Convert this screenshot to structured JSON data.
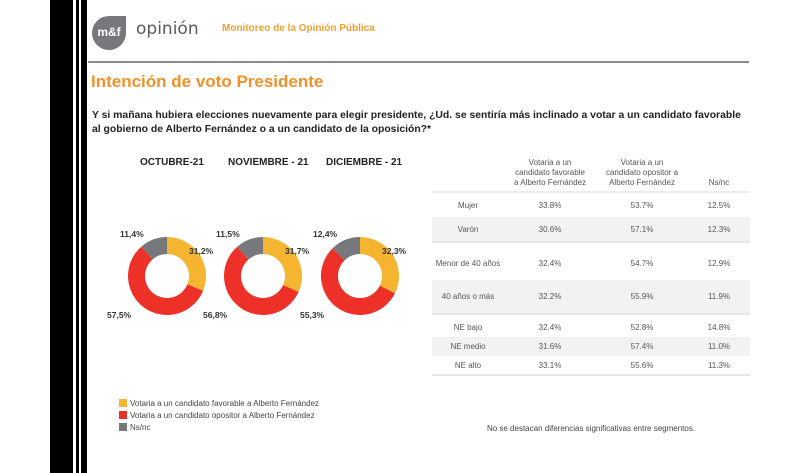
{
  "header": {
    "logo_text": "m&f",
    "brand": "opinión",
    "subtitle": "Monitoreo de la Opinión Pública"
  },
  "title": "Intención de voto Presidente",
  "question": "Y si mañana hubiera elecciones nuevamente para elegir presidente, ¿Ud. se sentiría más inclinado a votar a un candidato favorable al gobierno de Alberto Fernández o a un candidato de la oposición?*",
  "colors": {
    "favorable": "#f6b531",
    "opositor": "#ee3128",
    "nsnc": "#77787b"
  },
  "chart_data": [
    {
      "type": "pie",
      "title": "OCTUBRE-21",
      "labels": [
        "Votaria a un candidato favorable a Alberto Fernández",
        "Votaria a un candidato opositor a Alberto Fernández",
        "Ns/nc"
      ],
      "values": [
        31.2,
        57.5,
        11.4
      ],
      "value_labels": [
        "31,2%",
        "57,5%",
        "11,4%"
      ]
    },
    {
      "type": "pie",
      "title": "NOVIEMBRE - 21",
      "labels": [
        "Votaria a un candidato favorable a Alberto Fernández",
        "Votaria a un candidato opositor a Alberto Fernández",
        "Ns/nc"
      ],
      "values": [
        31.7,
        56.8,
        11.5
      ],
      "value_labels": [
        "31,7%",
        "56,8%",
        "11,5%"
      ]
    },
    {
      "type": "pie",
      "title": "DICIEMBRE - 21",
      "labels": [
        "Votaria a un candidato favorable a Alberto Fernández",
        "Votaria a un candidato opositor a Alberto Fernández",
        "Ns/nc"
      ],
      "values": [
        32.3,
        55.3,
        12.4
      ],
      "value_labels": [
        "32,3%",
        "55,3%",
        "12,4%"
      ]
    },
    {
      "type": "table",
      "columns": [
        "Votaria a un candidato favorable a Alberto Fernández",
        "Votaria a un candidato opositor a Alberto Fernández",
        "Ns/nc"
      ],
      "rows": [
        {
          "segment": "Mujer",
          "values": [
            "33.8%",
            "53.7%",
            "12.5%"
          ]
        },
        {
          "segment": "Varón",
          "values": [
            "30.6%",
            "57.1%",
            "12.3%"
          ]
        },
        {
          "segment": "Menor de 40 años",
          "values": [
            "32.4%",
            "54.7%",
            "12.9%"
          ]
        },
        {
          "segment": "40 años o más",
          "values": [
            "32.2%",
            "55.9%",
            "11.9%"
          ]
        },
        {
          "segment": "NE bajo",
          "values": [
            "32.4%",
            "52.8%",
            "14.8%"
          ]
        },
        {
          "segment": "NE medio",
          "values": [
            "31.6%",
            "57.4%",
            "11.0%"
          ]
        },
        {
          "segment": "NE alto",
          "values": [
            "33.1%",
            "55.6%",
            "11.3%"
          ]
        }
      ]
    }
  ],
  "legend": [
    {
      "label": "Votaria a un candidato favorable a Alberto Fernández"
    },
    {
      "label": "Votaria a un candidato opositor a Alberto Fernández"
    },
    {
      "label": "Ns/nc"
    }
  ],
  "table": {
    "headers": [
      [
        "Votaria a un",
        "candidato favorable",
        "a Alberto Fernández"
      ],
      [
        "Votaria a un",
        "candidato opositor a",
        "Alberto Fernández"
      ],
      [
        "Ns/nc"
      ]
    ]
  },
  "note": "No se destacan diferencias significativas entre segmentos."
}
